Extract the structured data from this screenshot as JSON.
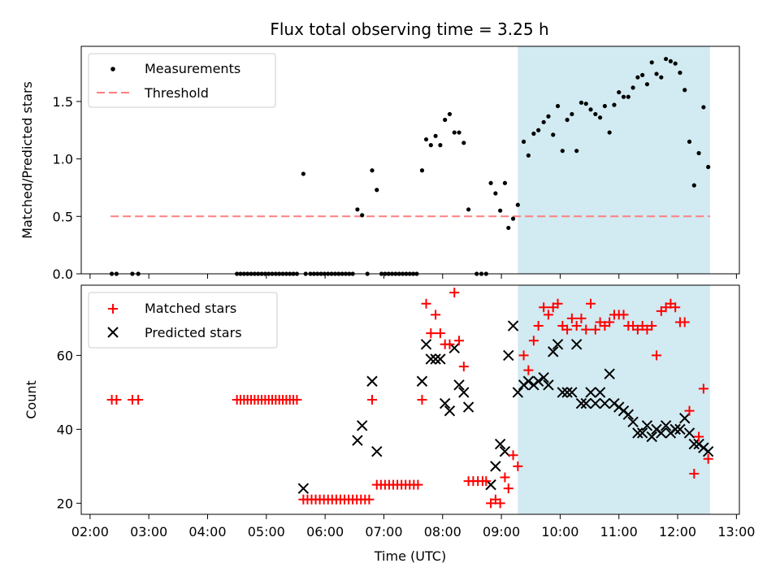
{
  "chart_data": {
    "type": "scatter",
    "title": "Flux total observing time = 3.25 h",
    "xlabel": "Time (UTC)",
    "x_range_hours": [
      1.85,
      13.05
    ],
    "x_ticks": [
      "02:00",
      "03:00",
      "04:00",
      "05:00",
      "06:00",
      "07:00",
      "08:00",
      "09:00",
      "10:00",
      "11:00",
      "12:00",
      "13:00"
    ],
    "x_tick_hours": [
      2,
      3,
      4,
      5,
      6,
      7,
      8,
      9,
      10,
      11,
      12,
      13
    ],
    "shaded_interval_hours": [
      9.28,
      12.55
    ],
    "shade_color": "#add8e6",
    "panels": [
      {
        "name": "ratio",
        "ylabel": "Matched/Predicted stars",
        "ylim": [
          0,
          1.98
        ],
        "y_ticks": [
          0.0,
          0.5,
          1.0,
          1.5
        ],
        "y_tick_labels": [
          "0.0",
          "0.5",
          "1.0",
          "1.5"
        ],
        "legend": [
          "Measurements",
          "Threshold"
        ],
        "legend_position": "upper-left",
        "threshold": {
          "value": 0.5,
          "x_range_hours": [
            2.35,
            12.55
          ],
          "color": "#ff7f7f"
        },
        "measurements": [
          [
            2.37,
            0
          ],
          [
            2.45,
            0
          ],
          [
            2.72,
            0
          ],
          [
            2.82,
            0
          ],
          [
            4.5,
            0
          ],
          [
            4.56,
            0
          ],
          [
            4.62,
            0
          ],
          [
            4.68,
            0
          ],
          [
            4.74,
            0
          ],
          [
            4.8,
            0
          ],
          [
            4.86,
            0
          ],
          [
            4.92,
            0
          ],
          [
            4.98,
            0
          ],
          [
            5.04,
            0
          ],
          [
            5.1,
            0
          ],
          [
            5.16,
            0
          ],
          [
            5.22,
            0
          ],
          [
            5.28,
            0
          ],
          [
            5.34,
            0
          ],
          [
            5.4,
            0
          ],
          [
            5.46,
            0
          ],
          [
            5.52,
            0
          ],
          [
            5.63,
            0.87
          ],
          [
            5.67,
            0
          ],
          [
            5.75,
            0
          ],
          [
            5.81,
            0
          ],
          [
            5.87,
            0
          ],
          [
            5.93,
            0
          ],
          [
            5.99,
            0
          ],
          [
            6.05,
            0
          ],
          [
            6.11,
            0
          ],
          [
            6.17,
            0
          ],
          [
            6.23,
            0
          ],
          [
            6.29,
            0
          ],
          [
            6.35,
            0
          ],
          [
            6.41,
            0
          ],
          [
            6.47,
            0
          ],
          [
            6.55,
            0.56
          ],
          [
            6.63,
            0.51
          ],
          [
            6.72,
            0
          ],
          [
            6.8,
            0.9
          ],
          [
            6.88,
            0.73
          ],
          [
            6.96,
            0
          ],
          [
            7.02,
            0
          ],
          [
            7.08,
            0
          ],
          [
            7.14,
            0
          ],
          [
            7.2,
            0
          ],
          [
            7.26,
            0
          ],
          [
            7.32,
            0
          ],
          [
            7.38,
            0
          ],
          [
            7.44,
            0
          ],
          [
            7.5,
            0
          ],
          [
            7.56,
            0
          ],
          [
            7.65,
            0.9
          ],
          [
            7.72,
            1.17
          ],
          [
            7.8,
            1.12
          ],
          [
            7.88,
            1.2
          ],
          [
            7.96,
            1.12
          ],
          [
            8.04,
            1.34
          ],
          [
            8.12,
            1.39
          ],
          [
            8.2,
            1.23
          ],
          [
            8.28,
            1.23
          ],
          [
            8.36,
            1.14
          ],
          [
            8.44,
            0.56
          ],
          [
            8.58,
            0
          ],
          [
            8.66,
            0
          ],
          [
            8.74,
            0
          ],
          [
            8.82,
            0.79
          ],
          [
            8.9,
            0.7
          ],
          [
            8.98,
            0.55
          ],
          [
            9.06,
            0.79
          ],
          [
            9.12,
            0.4
          ],
          [
            9.2,
            0.48
          ],
          [
            9.28,
            0.6
          ],
          [
            9.38,
            1.15
          ],
          [
            9.46,
            1.03
          ],
          [
            9.55,
            1.22
          ],
          [
            9.63,
            1.25
          ],
          [
            9.72,
            1.32
          ],
          [
            9.8,
            1.37
          ],
          [
            9.88,
            1.21
          ],
          [
            9.96,
            1.46
          ],
          [
            10.04,
            1.07
          ],
          [
            10.12,
            1.34
          ],
          [
            10.2,
            1.39
          ],
          [
            10.28,
            1.07
          ],
          [
            10.36,
            1.49
          ],
          [
            10.44,
            1.48
          ],
          [
            10.52,
            1.43
          ],
          [
            10.6,
            1.39
          ],
          [
            10.68,
            1.36
          ],
          [
            10.76,
            1.46
          ],
          [
            10.84,
            1.23
          ],
          [
            10.92,
            1.47
          ],
          [
            11.0,
            1.58
          ],
          [
            11.08,
            1.54
          ],
          [
            11.16,
            1.54
          ],
          [
            11.24,
            1.62
          ],
          [
            11.32,
            1.71
          ],
          [
            11.4,
            1.73
          ],
          [
            11.48,
            1.65
          ],
          [
            11.56,
            1.84
          ],
          [
            11.64,
            1.74
          ],
          [
            11.72,
            1.71
          ],
          [
            11.8,
            1.87
          ],
          [
            11.88,
            1.85
          ],
          [
            11.96,
            1.83
          ],
          [
            12.04,
            1.75
          ],
          [
            12.12,
            1.6
          ],
          [
            12.2,
            1.15
          ],
          [
            12.28,
            0.77
          ],
          [
            12.36,
            1.05
          ],
          [
            12.44,
            1.45
          ],
          [
            12.52,
            0.93
          ]
        ]
      },
      {
        "name": "counts",
        "ylabel": "Count",
        "ylim": [
          17,
          79
        ],
        "y_ticks": [
          20,
          40,
          60
        ],
        "y_tick_labels": [
          "20",
          "40",
          "60"
        ],
        "legend": [
          "Matched stars",
          "Predicted stars"
        ],
        "legend_position": "upper-left",
        "matched_stars": [
          [
            2.37,
            48
          ],
          [
            2.45,
            48
          ],
          [
            2.72,
            48
          ],
          [
            2.82,
            48
          ],
          [
            4.5,
            48
          ],
          [
            4.56,
            48
          ],
          [
            4.62,
            48
          ],
          [
            4.68,
            48
          ],
          [
            4.74,
            48
          ],
          [
            4.8,
            48
          ],
          [
            4.86,
            48
          ],
          [
            4.92,
            48
          ],
          [
            4.98,
            48
          ],
          [
            5.04,
            48
          ],
          [
            5.1,
            48
          ],
          [
            5.16,
            48
          ],
          [
            5.22,
            48
          ],
          [
            5.28,
            48
          ],
          [
            5.34,
            48
          ],
          [
            5.4,
            48
          ],
          [
            5.46,
            48
          ],
          [
            5.52,
            48
          ],
          [
            5.63,
            21
          ],
          [
            5.7,
            21
          ],
          [
            5.77,
            21
          ],
          [
            5.84,
            21
          ],
          [
            5.91,
            21
          ],
          [
            5.98,
            21
          ],
          [
            6.05,
            21
          ],
          [
            6.12,
            21
          ],
          [
            6.19,
            21
          ],
          [
            6.26,
            21
          ],
          [
            6.33,
            21
          ],
          [
            6.4,
            21
          ],
          [
            6.47,
            21
          ],
          [
            6.54,
            21
          ],
          [
            6.61,
            21
          ],
          [
            6.68,
            21
          ],
          [
            6.75,
            21
          ],
          [
            6.8,
            48
          ],
          [
            6.88,
            25
          ],
          [
            6.95,
            25
          ],
          [
            7.02,
            25
          ],
          [
            7.09,
            25
          ],
          [
            7.16,
            25
          ],
          [
            7.23,
            25
          ],
          [
            7.3,
            25
          ],
          [
            7.37,
            25
          ],
          [
            7.44,
            25
          ],
          [
            7.51,
            25
          ],
          [
            7.58,
            25
          ],
          [
            7.65,
            48
          ],
          [
            7.72,
            74
          ],
          [
            7.8,
            66
          ],
          [
            7.88,
            71
          ],
          [
            7.96,
            66
          ],
          [
            8.04,
            63
          ],
          [
            8.12,
            63
          ],
          [
            8.2,
            77
          ],
          [
            8.28,
            64
          ],
          [
            8.36,
            57
          ],
          [
            8.44,
            26
          ],
          [
            8.52,
            26
          ],
          [
            8.6,
            26
          ],
          [
            8.68,
            26
          ],
          [
            8.74,
            26
          ],
          [
            8.82,
            20
          ],
          [
            8.9,
            21
          ],
          [
            8.98,
            20
          ],
          [
            9.06,
            27
          ],
          [
            9.12,
            24
          ],
          [
            9.2,
            33
          ],
          [
            9.28,
            30
          ],
          [
            9.38,
            60
          ],
          [
            9.46,
            56
          ],
          [
            9.55,
            64
          ],
          [
            9.63,
            68
          ],
          [
            9.72,
            73
          ],
          [
            9.8,
            71
          ],
          [
            9.88,
            73
          ],
          [
            9.96,
            74
          ],
          [
            10.04,
            68
          ],
          [
            10.12,
            67
          ],
          [
            10.2,
            70
          ],
          [
            10.28,
            68
          ],
          [
            10.36,
            70
          ],
          [
            10.44,
            67
          ],
          [
            10.52,
            74
          ],
          [
            10.6,
            67
          ],
          [
            10.68,
            69
          ],
          [
            10.76,
            68
          ],
          [
            10.84,
            69
          ],
          [
            10.92,
            71
          ],
          [
            11.0,
            71
          ],
          [
            11.08,
            71
          ],
          [
            11.16,
            68
          ],
          [
            11.24,
            68
          ],
          [
            11.32,
            67
          ],
          [
            11.4,
            68
          ],
          [
            11.48,
            67
          ],
          [
            11.56,
            68
          ],
          [
            11.64,
            60
          ],
          [
            11.72,
            72
          ],
          [
            11.8,
            73
          ],
          [
            11.88,
            74
          ],
          [
            11.96,
            73
          ],
          [
            12.04,
            69
          ],
          [
            12.12,
            69
          ],
          [
            12.2,
            45
          ],
          [
            12.28,
            28
          ],
          [
            12.36,
            38
          ],
          [
            12.44,
            51
          ],
          [
            12.52,
            32
          ]
        ],
        "predicted_stars": [
          [
            5.63,
            24
          ],
          [
            6.55,
            37
          ],
          [
            6.63,
            41
          ],
          [
            6.8,
            53
          ],
          [
            6.88,
            34
          ],
          [
            7.65,
            53
          ],
          [
            7.72,
            63
          ],
          [
            7.8,
            59
          ],
          [
            7.88,
            59
          ],
          [
            7.96,
            59
          ],
          [
            8.04,
            47
          ],
          [
            8.12,
            45
          ],
          [
            8.2,
            62
          ],
          [
            8.28,
            52
          ],
          [
            8.36,
            50
          ],
          [
            8.44,
            46
          ],
          [
            8.82,
            25
          ],
          [
            8.9,
            30
          ],
          [
            8.98,
            36
          ],
          [
            9.06,
            34
          ],
          [
            9.12,
            60
          ],
          [
            9.2,
            68
          ],
          [
            9.28,
            50
          ],
          [
            9.38,
            52
          ],
          [
            9.46,
            53
          ],
          [
            9.55,
            52
          ],
          [
            9.63,
            53
          ],
          [
            9.72,
            54
          ],
          [
            9.8,
            52
          ],
          [
            9.88,
            61
          ],
          [
            9.96,
            63
          ],
          [
            10.04,
            50
          ],
          [
            10.12,
            50
          ],
          [
            10.2,
            50
          ],
          [
            10.28,
            63
          ],
          [
            10.36,
            47
          ],
          [
            10.44,
            47
          ],
          [
            10.52,
            50
          ],
          [
            10.6,
            47
          ],
          [
            10.68,
            50
          ],
          [
            10.76,
            47
          ],
          [
            10.84,
            55
          ],
          [
            10.92,
            47
          ],
          [
            11.0,
            46
          ],
          [
            11.08,
            45
          ],
          [
            11.16,
            44
          ],
          [
            11.24,
            42
          ],
          [
            11.32,
            39
          ],
          [
            11.4,
            39
          ],
          [
            11.48,
            41
          ],
          [
            11.56,
            38
          ],
          [
            11.64,
            40
          ],
          [
            11.72,
            39
          ],
          [
            11.8,
            41
          ],
          [
            11.88,
            39
          ],
          [
            11.96,
            40
          ],
          [
            12.04,
            40
          ],
          [
            12.12,
            43
          ],
          [
            12.2,
            39
          ],
          [
            12.28,
            36
          ],
          [
            12.36,
            36
          ],
          [
            12.44,
            35
          ],
          [
            12.52,
            34
          ]
        ]
      }
    ]
  }
}
